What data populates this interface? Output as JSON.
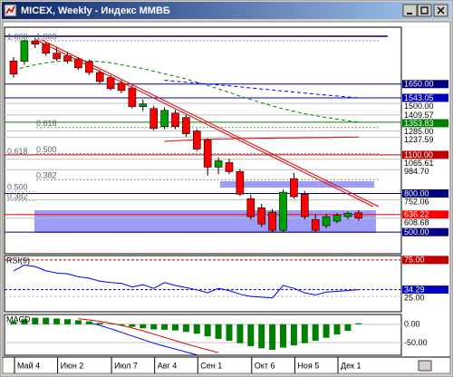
{
  "window": {
    "title": "MICEX, Weekly - Индекс ММВБ"
  },
  "chart_data": [
    {
      "type": "candlestick",
      "categories": [
        "Май 4",
        null,
        null,
        null,
        "Июн 2",
        null,
        null,
        null,
        null,
        "Июл 7",
        null,
        null,
        null,
        "Авг 4",
        null,
        null,
        null,
        "Сен 1",
        null,
        null,
        null,
        null,
        "Окт 6",
        null,
        null,
        null,
        "Ноя 5",
        null,
        null,
        null,
        "Дек 1",
        null,
        null
      ],
      "open": [
        1830,
        1827,
        1985,
        1960,
        1890,
        1870,
        1846,
        1825,
        1740,
        1700,
        1657,
        1620,
        1475,
        1460,
        1320,
        1425,
        1390,
        1285,
        1215,
        1005,
        1040,
        970,
        760,
        690,
        655,
        514,
        915,
        795,
        598,
        550,
        585,
        620,
        650
      ],
      "high": [
        1860,
        1995,
        2010,
        1975,
        1935,
        1900,
        1860,
        1840,
        1760,
        1720,
        1680,
        1640,
        1530,
        1480,
        1470,
        1450,
        1410,
        1300,
        1230,
        1080,
        1070,
        990,
        790,
        720,
        680,
        830,
        960,
        820,
        640,
        640,
        650,
        660,
        670
      ],
      "low": [
        1700,
        1800,
        1930,
        1870,
        1830,
        1810,
        1760,
        1720,
        1650,
        1600,
        1580,
        1460,
        1440,
        1290,
        1300,
        1300,
        1240,
        1130,
        940,
        950,
        950,
        780,
        600,
        540,
        500,
        500,
        760,
        600,
        500,
        530,
        570,
        600,
        590
      ],
      "close": [
        1727,
        1987,
        1960,
        1890,
        1846,
        1830,
        1776,
        1740,
        1670,
        1615,
        1600,
        1475,
        1495,
        1306,
        1446,
        1320,
        1264,
        1145,
        1005,
        1054,
        970,
        795,
        620,
        563,
        514,
        810,
        775,
        620,
        514,
        620,
        630,
        647,
        608.68
      ],
      "up_color": "#00a000",
      "down_color": "#ff0000",
      "series": [
        {
          "color": "#008000",
          "dash": true,
          "values": [
            1760,
            1780,
            1800,
            1815,
            1825,
            1830,
            1832,
            1830,
            1825,
            1815,
            1800,
            1785,
            1770,
            1750,
            1730,
            1710,
            1690,
            1665,
            1640,
            1612,
            1585,
            1557,
            1530,
            1505,
            1480,
            1458,
            1438,
            1420,
            1405,
            1390,
            1378,
            1365,
            1354
          ]
        },
        {
          "color": "#0000ff",
          "dash": true,
          "values": [
            null,
            null,
            null,
            null,
            null,
            null,
            null,
            null,
            null,
            null,
            null,
            null,
            null,
            null,
            1680,
            1672,
            1665,
            1658,
            1650,
            1643,
            1636,
            1628,
            1620,
            1612,
            1604,
            1596,
            1588,
            1580,
            1572,
            1565,
            1558,
            1550,
            1543
          ]
        },
        {
          "color": "#e00000",
          "dash": false,
          "values": [
            null,
            null,
            null,
            null,
            null,
            null,
            null,
            null,
            null,
            null,
            null,
            null,
            null,
            null,
            1205,
            1210,
            1214,
            1218,
            1221,
            1223,
            1225,
            1227,
            1228,
            1229,
            1230,
            1231,
            1232,
            1233,
            1234,
            1235,
            1236,
            1237,
            1238
          ]
        }
      ],
      "ylim": [
        332,
        2092
      ],
      "yticks": [
        {
          "value": 1650,
          "label": "1650.00",
          "color": "#000080"
        },
        {
          "value": 1543.05,
          "label": "1543.05",
          "color": "#0000c0"
        },
        {
          "value": 1500,
          "label": "1500.00",
          "color": "#ffffff"
        },
        {
          "value": 1409.57,
          "label": "1409.57",
          "color": "#ffffff"
        },
        {
          "value": 1353.83,
          "label": "1353.83",
          "color": "#008000"
        },
        {
          "value": 1285,
          "label": "1285.00",
          "color": "#ffffff"
        },
        {
          "value": 1237.59,
          "label": "1237.59",
          "color": "#ffffff"
        },
        {
          "value": 1100,
          "label": "1100.00",
          "color": "#c00000"
        },
        {
          "value": 1065.61,
          "label": "1065.61",
          "color": "#ffffff"
        },
        {
          "value": 984.7,
          "label": "984.70",
          "color": "#ffffff"
        },
        {
          "value": 800,
          "label": "800.00",
          "color": "#000080"
        },
        {
          "value": 752.06,
          "label": "752.06",
          "color": "#ffffff"
        },
        {
          "value": 636.22,
          "label": "636.22",
          "color": "#ff0000"
        },
        {
          "value": 608.68,
          "label": "608.68",
          "color": "#ffffff"
        },
        {
          "value": 500,
          "label": "500.00",
          "color": "#000080"
        }
      ],
      "fib_sets": [
        {
          "color": "#b0b0b0",
          "levels": [
            {
              "label": "1.000",
              "value": 1987
            },
            {
              "label": "0.618",
              "value": 1096
            },
            {
              "label": "0.500",
              "value": 816
            },
            {
              "label": "0.382",
              "value": 745
            }
          ]
        },
        {
          "color": "#909090",
          "levels": [
            {
              "label": "1.000",
              "value": 1987
            },
            {
              "label": "0.618",
              "value": 1313
            },
            {
              "label": "0.500",
              "value": 1110
            },
            {
              "label": "0.382",
              "value": 907
            }
          ]
        }
      ]
    },
    {
      "type": "line",
      "title": "RSI(9)",
      "series": [
        {
          "color": "#0000ff",
          "dash": false,
          "values": [
            60,
            68,
            66,
            60,
            57,
            56,
            52,
            50,
            46,
            44,
            43,
            38,
            41,
            36,
            44,
            40,
            37,
            34,
            30,
            36,
            33,
            28,
            25,
            24,
            23,
            40,
            36,
            30,
            27,
            31,
            32,
            33,
            34.29
          ]
        }
      ],
      "ylim": [
        4,
        81
      ],
      "yticks": [
        {
          "value": 75,
          "label": "75.00",
          "color": "#c00000"
        },
        {
          "value": 34.29,
          "label": "34.29",
          "color": "#0000c0"
        },
        {
          "value": 25,
          "label": "25.00",
          "color": "#ffffff"
        }
      ]
    },
    {
      "type": "macd",
      "title": "MACD",
      "values": [
        8,
        14,
        18,
        18,
        16,
        14,
        11,
        8,
        4,
        1,
        -3,
        -7,
        -11,
        -14,
        -15,
        -17,
        -21,
        -26,
        -33,
        -40,
        -45,
        -52,
        -60,
        -66,
        -70,
        -64,
        -58,
        -52,
        -45,
        -37,
        -28,
        -18,
        3
      ],
      "color": "#008000",
      "series": [
        {
          "color": "#e00000",
          "dash": false,
          "values": [
            null,
            null,
            null,
            null,
            null,
            null,
            15,
            12,
            8,
            3,
            -3,
            -10,
            -18,
            -27,
            -36,
            -45,
            -54,
            -62,
            -70,
            -78,
            null,
            null,
            null,
            null,
            null,
            null,
            null,
            null,
            null,
            null,
            null,
            null,
            null
          ]
        },
        {
          "color": "#0000ff",
          "dash": false,
          "values": [
            null,
            null,
            null,
            null,
            null,
            null,
            null,
            5,
            -3,
            -12,
            -22,
            -32,
            -42,
            -52,
            -60,
            -68,
            -76,
            -84,
            null,
            null,
            null,
            null,
            null,
            null,
            null,
            null,
            null,
            null,
            null,
            null,
            null,
            null,
            null
          ]
        }
      ],
      "ylim": [
        -85,
        27
      ],
      "yticks": [
        {
          "value": 0,
          "label": "0.00",
          "color": "#ffffff"
        },
        {
          "value": -50,
          "label": "-50.00",
          "color": "#ffffff"
        }
      ]
    }
  ]
}
